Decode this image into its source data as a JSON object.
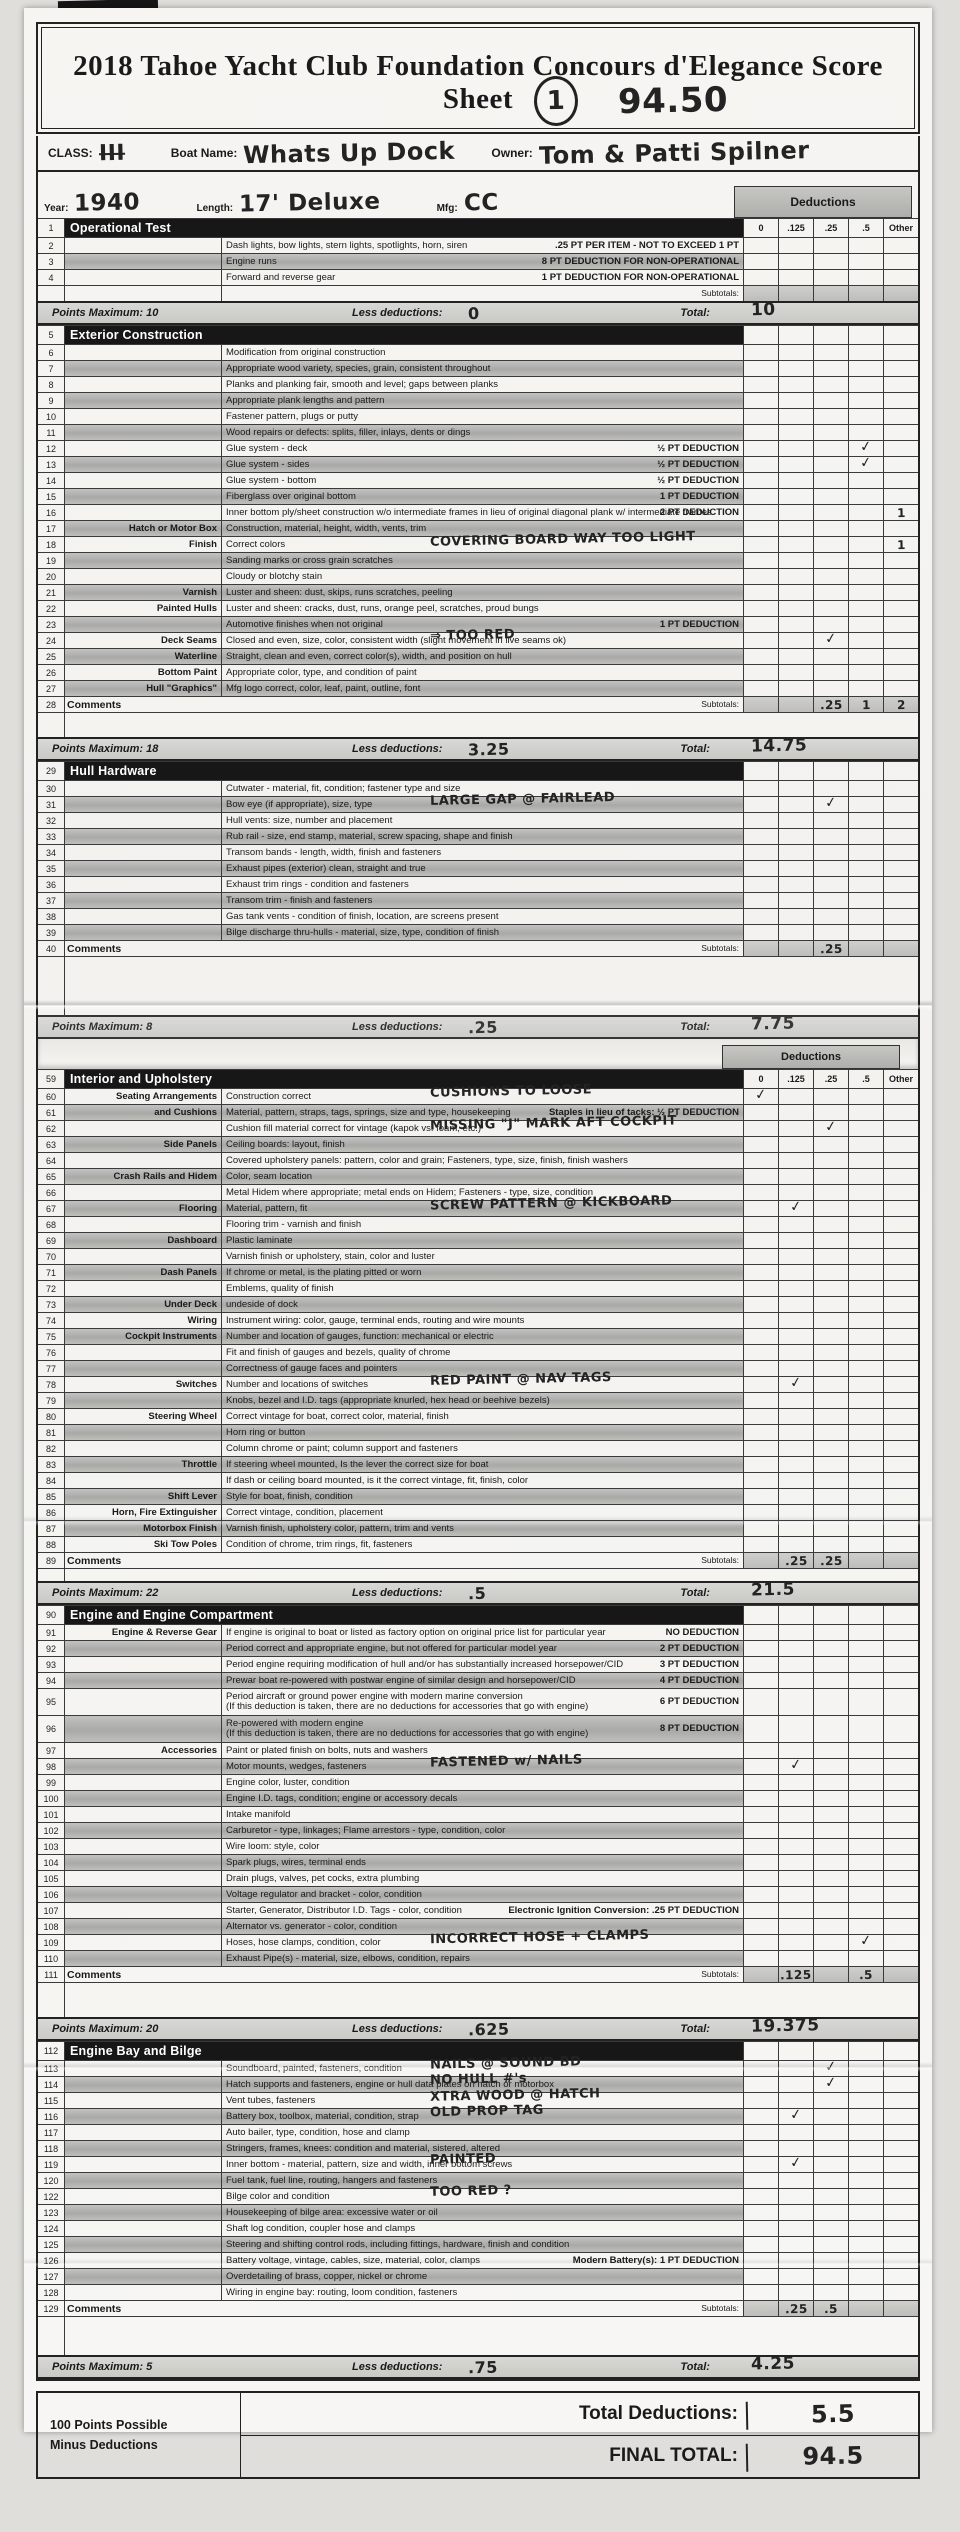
{
  "header": {
    "title": "2018 Tahoe Yacht Club Foundation Concours d'Elegance Score Sheet",
    "rank": "1",
    "score": "94.50"
  },
  "meta": {
    "class_label": "CLASS:",
    "class_value": "III",
    "boat_label": "Boat Name:",
    "boat_value": "Whats Up Dock",
    "owner_label": "Owner:",
    "owner_value": "Tom & Patti Spilner",
    "year_label": "Year:",
    "year_value": "1940",
    "length_label": "Length:",
    "length_value": "17' Deluxe",
    "mfg_label": "Mfg:",
    "mfg_value": "CC",
    "deductions_label": "Deductions",
    "columns": [
      "0",
      ".125",
      ".25",
      ".5",
      "Other"
    ]
  },
  "labels": {
    "subtotals": "Subtotals:",
    "comments": "Comments",
    "less_deductions": "Less deductions:",
    "total": "Total:"
  },
  "rows": [
    {
      "type": "section",
      "num": "1",
      "title": "Operational Test",
      "cols": true
    },
    {
      "type": "item",
      "num": "2",
      "desc": "Dash lights, bow lights, stern lights, spotlights, horn, siren",
      "note": ".25 PT PER ITEM - NOT TO EXCEED 1 PT"
    },
    {
      "type": "item",
      "num": "3",
      "desc": "Engine runs",
      "note": "8 PT DEDUCTION FOR NON-OPERATIONAL",
      "shade": true
    },
    {
      "type": "item",
      "num": "4",
      "desc": "Forward and reverse gear",
      "note": "1 PT DEDUCTION FOR NON-OPERATIONAL"
    },
    {
      "type": "subtotal",
      "vals": {}
    },
    {
      "type": "points",
      "max": "Points Maximum: 10",
      "less_val": "0",
      "total_val": "10"
    },
    {
      "type": "section",
      "num": "5",
      "title": "Exterior Construction"
    },
    {
      "type": "item",
      "num": "6",
      "desc": "Modification from original construction"
    },
    {
      "type": "item",
      "num": "7",
      "desc": "Appropriate wood variety, species, grain, consistent throughout",
      "shade": true
    },
    {
      "type": "item",
      "num": "8",
      "desc": "Planks and planking fair, smooth and level; gaps between planks"
    },
    {
      "type": "item",
      "num": "9",
      "desc": "Appropriate plank lengths and pattern",
      "shade": true
    },
    {
      "type": "item",
      "num": "10",
      "desc": "Fastener pattern, plugs or putty"
    },
    {
      "type": "item",
      "num": "11",
      "desc": "Wood repairs or defects: splits, filler, inlays, dents or dings",
      "shade": true
    },
    {
      "type": "item",
      "num": "12",
      "desc": "Glue system - deck",
      "note": "½ PT DEDUCTION",
      "checks": {
        "3": "check"
      }
    },
    {
      "type": "item",
      "num": "13",
      "desc": "Glue system - sides",
      "note": "½ PT DEDUCTION",
      "shade": true,
      "checks": {
        "3": "check"
      }
    },
    {
      "type": "item",
      "num": "14",
      "desc": "Glue system - bottom",
      "note": "½ PT DEDUCTION"
    },
    {
      "type": "item",
      "num": "15",
      "desc": "Fiberglass over original bottom",
      "note": "1 PT DEDUCTION",
      "shade": true
    },
    {
      "type": "item",
      "num": "16",
      "desc": "Inner bottom ply/sheet construction w/o intermediate frames in lieu of original diagonal plank w/ intermediate frames",
      "note": "2 PT DEDUCTION",
      "checks": {
        "4": "1"
      }
    },
    {
      "type": "item",
      "num": "17",
      "label": "Hatch or Motor Box",
      "desc": "Construction, material, height, width, vents, trim",
      "shade": true
    },
    {
      "type": "item",
      "num": "18",
      "label": "Finish",
      "desc": "Correct colors",
      "hw": "COVERING BOARD WAY TOO LIGHT",
      "checks": {
        "4": "1"
      }
    },
    {
      "type": "item",
      "num": "19",
      "desc": "Sanding marks or cross grain scratches",
      "shade": true
    },
    {
      "type": "item",
      "num": "20",
      "desc": "Cloudy or blotchy stain"
    },
    {
      "type": "item",
      "num": "21",
      "label": "Varnish",
      "desc": "Luster and sheen: dust, skips, runs scratches, peeling",
      "shade": true
    },
    {
      "type": "item",
      "num": "22",
      "label": "Painted Hulls",
      "desc": "Luster and sheen: cracks, dust, runs, orange peel, scratches, proud bungs"
    },
    {
      "type": "item",
      "num": "23",
      "desc": "Automotive finishes when not original",
      "note": "1 PT DEDUCTION",
      "shade": true
    },
    {
      "type": "item",
      "num": "24",
      "label": "Deck Seams",
      "desc": "Closed and even, size, color, consistent width (slight movement in live seams ok)",
      "hw": "⇒ TOO RED",
      "checks": {
        "2": "check"
      }
    },
    {
      "type": "item",
      "num": "25",
      "label": "Waterline",
      "desc": "Straight, clean and even, correct color(s), width, and position on hull",
      "shade": true
    },
    {
      "type": "item",
      "num": "26",
      "label": "Bottom Paint",
      "desc": "Appropriate color, type, and condition of paint"
    },
    {
      "type": "item",
      "num": "27",
      "label": "Hull \"Graphics\"",
      "desc": "Mfg logo correct, color, leaf, paint, outline, font",
      "shade": true
    },
    {
      "type": "comments",
      "num": "28",
      "vals": {
        "2": ".25",
        "3": "1",
        "4": "2"
      },
      "gap": 24
    },
    {
      "type": "points",
      "max": "Points Maximum: 18",
      "less_val": "3.25",
      "total_val": "14.75"
    },
    {
      "type": "section",
      "num": "29",
      "title": "Hull Hardware"
    },
    {
      "type": "item",
      "num": "30",
      "desc": "Cutwater - material, fit, condition; fastener type and size"
    },
    {
      "type": "item",
      "num": "31",
      "desc": "Bow eye (if appropriate), size, type",
      "shade": true,
      "hw": "LARGE GAP @ FAIRLEAD",
      "checks": {
        "2": "check"
      }
    },
    {
      "type": "item",
      "num": "32",
      "desc": "Hull vents: size, number and placement"
    },
    {
      "type": "item",
      "num": "33",
      "desc": "Rub rail - size, end stamp, material, screw spacing, shape and finish",
      "shade": true
    },
    {
      "type": "item",
      "num": "34",
      "desc": "Transom bands - length, width, finish and fasteners"
    },
    {
      "type": "item",
      "num": "35",
      "desc": "Exhaust pipes (exterior) clean, straight and true",
      "shade": true
    },
    {
      "type": "item",
      "num": "36",
      "desc": "Exhaust trim rings - condition and fasteners"
    },
    {
      "type": "item",
      "num": "37",
      "desc": "Transom trim - finish and fasteners",
      "shade": true
    },
    {
      "type": "item",
      "num": "38",
      "desc": "Gas tank vents - condition of finish, location, are screens present"
    },
    {
      "type": "item",
      "num": "39",
      "desc": "Bilge discharge thru-hulls - material, size, type, condition of finish",
      "shade": true
    },
    {
      "type": "comments",
      "num": "40",
      "vals": {
        "2": ".25"
      },
      "gap": 58
    },
    {
      "type": "points",
      "max": "Points Maximum: 8",
      "less_val": ".25",
      "total_val": "7.75",
      "cut": true
    },
    {
      "type": "pagebreak"
    },
    {
      "type": "section",
      "num": "59",
      "title": "Interior and Upholstery",
      "cols": true
    },
    {
      "type": "item",
      "num": "60",
      "label": "Seating Arrangements",
      "desc": "Construction correct",
      "hw": "CUSHIONS TO LOOSE",
      "checks": {
        "0": "check"
      }
    },
    {
      "type": "item",
      "num": "61",
      "label": "and Cushions",
      "desc": "Material, pattern, straps, tags, springs, size and type, housekeeping",
      "note": "Staples in lieu of tacks:  ½ PT DEDUCTION",
      "shade": true
    },
    {
      "type": "item",
      "num": "62",
      "desc": "Cushion fill material correct for vintage (kapok vs. foam, etc.)",
      "hw": "MISSING \"J\" MARK AFT COCKPIT",
      "checks": {
        "2": "check"
      }
    },
    {
      "type": "item",
      "num": "63",
      "label": "Side Panels",
      "desc": "Ceiling boards: layout, finish",
      "shade": true
    },
    {
      "type": "item",
      "num": "64",
      "desc": "Covered upholstery panels: pattern, color and grain; Fasteners, type, size, finish, finish washers"
    },
    {
      "type": "item",
      "num": "65",
      "label": "Crash Rails and Hidem",
      "desc": "Color, seam location",
      "shade": true
    },
    {
      "type": "item",
      "num": "66",
      "desc": "Metal Hidem where appropriate; metal ends on Hidem; Fasteners - type, size, condition"
    },
    {
      "type": "item",
      "num": "67",
      "label": "Flooring",
      "desc": "Material, pattern, fit",
      "hw": "SCREW PATTERN @ KICKBOARD",
      "shade": true,
      "checks": {
        "1": "check"
      }
    },
    {
      "type": "item",
      "num": "68",
      "desc": "Flooring trim - varnish and finish"
    },
    {
      "type": "item",
      "num": "69",
      "label": "Dashboard",
      "desc": "Plastic laminate",
      "shade": true
    },
    {
      "type": "item",
      "num": "70",
      "desc": "Varnish finish or upholstery,  stain, color and luster"
    },
    {
      "type": "item",
      "num": "71",
      "label": "Dash Panels",
      "desc": "If chrome or metal, is the plating pitted or worn",
      "shade": true
    },
    {
      "type": "item",
      "num": "72",
      "desc": "Emblems, quality of finish"
    },
    {
      "type": "item",
      "num": "73",
      "label": "Under Deck",
      "desc": "undeside of dock",
      "shade": true
    },
    {
      "type": "item",
      "num": "74",
      "label": "Wiring",
      "desc": "Instrument wiring: color, gauge, terminal ends, routing and wire mounts"
    },
    {
      "type": "item",
      "num": "75",
      "label": "Cockpit Instruments",
      "desc": "Number and location of gauges, function: mechanical or electric",
      "shade": true
    },
    {
      "type": "item",
      "num": "76",
      "desc": "Fit and finish of gauges and bezels, quality of chrome"
    },
    {
      "type": "item",
      "num": "77",
      "desc": "Correctness of gauge faces and pointers",
      "shade": true
    },
    {
      "type": "item",
      "num": "78",
      "label": "Switches",
      "desc": "Number and locations of switches",
      "hw": "RED PAINT @ NAV TAGS",
      "checks": {
        "1": "check"
      }
    },
    {
      "type": "item",
      "num": "79",
      "desc": "Knobs, bezel and I.D. tags (appropriate knurled, hex head or beehive bezels)",
      "shade": true
    },
    {
      "type": "item",
      "num": "80",
      "label": "Steering Wheel",
      "desc": "Correct vintage for boat, correct color, material, finish"
    },
    {
      "type": "item",
      "num": "81",
      "desc": "Horn ring or button",
      "shade": true
    },
    {
      "type": "item",
      "num": "82",
      "desc": "Column chrome or paint; column support and fasteners"
    },
    {
      "type": "item",
      "num": "83",
      "label": "Throttle",
      "desc": "If steering wheel mounted, Is the lever the correct size for boat",
      "shade": true
    },
    {
      "type": "item",
      "num": "84",
      "desc": "If dash or ceiling board mounted, is it the correct vintage, fit, finish, color"
    },
    {
      "type": "item",
      "num": "85",
      "label": "Shift Lever",
      "desc": "Style for boat, finish, condition",
      "shade": true
    },
    {
      "type": "item",
      "num": "86",
      "label": "Horn, Fire Extinguisher",
      "desc": "Correct vintage, condition, placement"
    },
    {
      "type": "item",
      "num": "87",
      "label": "Motorbox Finish",
      "desc": "Varnish finish, upholstery color, pattern, trim and vents",
      "shade": true
    },
    {
      "type": "item",
      "num": "88",
      "label": "Ski Tow Poles",
      "desc": "Condition of chrome, trim rings, fit, fasteners"
    },
    {
      "type": "comments",
      "num": "89",
      "vals": {
        "1": ".25",
        "2": ".25"
      },
      "gap": 12
    },
    {
      "type": "points",
      "max": "Points Maximum: 22",
      "less_val": ".5",
      "total_val": "21.5"
    },
    {
      "type": "section",
      "num": "90",
      "title": "Engine and Engine Compartment"
    },
    {
      "type": "item",
      "num": "91",
      "label": "Engine & Reverse Gear",
      "desc": "If engine is original to boat or listed as factory option on original price list for particular year",
      "note": "NO DEDUCTION"
    },
    {
      "type": "item",
      "num": "92",
      "desc": "Period correct and appropriate engine, but not offered for particular model year",
      "note": "2 PT DEDUCTION",
      "shade": true
    },
    {
      "type": "item",
      "num": "93",
      "desc": "Period engine requiring modification of hull and/or has substantially increased horsepower/CID",
      "note": "3 PT DEDUCTION"
    },
    {
      "type": "item",
      "num": "94",
      "desc": "Prewar boat re-powered with postwar engine of similar design and horsepower/CID",
      "note": "4 PT DEDUCTION",
      "shade": true
    },
    {
      "type": "item",
      "num": "95",
      "desc": "Period aircraft or ground power engine with modern marine conversion",
      "desc2": "(If this deduction is taken, there are no deductions for accessories that go with engine)",
      "note": "6 PT DEDUCTION",
      "tall": true
    },
    {
      "type": "item",
      "num": "96",
      "desc": "Re-powered with modern engine",
      "desc2": "(If this deduction is taken, there are no deductions for accessories that go with engine)",
      "note": "8 PT DEDUCTION",
      "shade": true,
      "tall": true
    },
    {
      "type": "item",
      "num": "97",
      "label": "Accessories",
      "desc": "Paint or plated finish on bolts, nuts and washers"
    },
    {
      "type": "item",
      "num": "98",
      "desc": "Motor mounts, wedges, fasteners",
      "hw": "FASTENED w/ NAILS",
      "shade": true,
      "checks": {
        "1": "check"
      }
    },
    {
      "type": "item",
      "num": "99",
      "desc": "Engine color, luster, condition"
    },
    {
      "type": "item",
      "num": "100",
      "desc": "Engine I.D. tags, condition; engine or accessory decals",
      "shade": true
    },
    {
      "type": "item",
      "num": "101",
      "desc": "Intake manifold"
    },
    {
      "type": "item",
      "num": "102",
      "desc": "Carburetor - type, linkages; Flame arrestors - type, condition, color",
      "shade": true
    },
    {
      "type": "item",
      "num": "103",
      "desc": "Wire loom: style, color"
    },
    {
      "type": "item",
      "num": "104",
      "desc": "Spark plugs, wires, terminal ends",
      "shade": true
    },
    {
      "type": "item",
      "num": "105",
      "desc": "Drain plugs, valves, pet cocks, extra plumbing"
    },
    {
      "type": "item",
      "num": "106",
      "desc": "Voltage regulator and bracket - color, condition",
      "shade": true
    },
    {
      "type": "item",
      "num": "107",
      "desc": "Starter, Generator, Distributor I.D. Tags - color, condition",
      "note": "Electronic Ignition Conversion:  .25 PT DEDUCTION"
    },
    {
      "type": "item",
      "num": "108",
      "desc": "Alternator vs. generator - color, condition",
      "shade": true
    },
    {
      "type": "item",
      "num": "109",
      "desc": "Hoses, hose clamps, condition, color",
      "hw": "INCORRECT HOSE + CLAMPS",
      "checks": {
        "3": "check"
      }
    },
    {
      "type": "item",
      "num": "110",
      "desc": "Exhaust Pipe(s) - material, size, elbows, condition, repairs",
      "shade": true
    },
    {
      "type": "comments",
      "num": "111",
      "vals": {
        "1": ".125",
        "3": ".5"
      },
      "gap": 34
    },
    {
      "type": "points",
      "max": "Points Maximum: 20",
      "less_val": ".625",
      "total_val": "19.375"
    },
    {
      "type": "section",
      "num": "112",
      "title": "Engine Bay and Bilge"
    },
    {
      "type": "item",
      "num": "113",
      "desc": "Soundboard, painted, fasteners, condition",
      "hw": "NAILS @ SOUND BD",
      "checks": {
        "2": "check"
      }
    },
    {
      "type": "item",
      "num": "114",
      "desc": "Hatch supports and fasteners, engine or hull data plates on hatch or motorbox",
      "hw": "NO HULL #'s",
      "shade": true,
      "checks": {
        "2": "check"
      }
    },
    {
      "type": "item",
      "num": "115",
      "desc": "Vent tubes, fasteners",
      "hw": "XTRA WOOD @ HATCH"
    },
    {
      "type": "item",
      "num": "116",
      "desc": "Battery box, toolbox, material, condition, strap",
      "hw": "OLD PROP TAG",
      "shade": true,
      "checks": {
        "1": "check"
      }
    },
    {
      "type": "item",
      "num": "117",
      "desc": "Auto bailer, type, condition, hose and clamp"
    },
    {
      "type": "item",
      "num": "118",
      "desc": "Stringers, frames, knees: condition and material, sistered, altered",
      "shade": true
    },
    {
      "type": "item",
      "num": "119",
      "desc": "Inner bottom - material, pattern, size and width, inner bottom screws",
      "hw": "PAINTED",
      "checks": {
        "1": "check"
      }
    },
    {
      "type": "item",
      "num": "120",
      "desc": "Fuel tank, fuel line, routing, hangers and fasteners",
      "shade": true
    },
    {
      "type": "item",
      "num": "122",
      "desc": "Bilge color and condition",
      "hw": "TOO RED ?"
    },
    {
      "type": "item",
      "num": "123",
      "desc": "Housekeeping of bilge area: excessive water or oil",
      "shade": true
    },
    {
      "type": "item",
      "num": "124",
      "desc": "Shaft log condition, coupler hose and clamps"
    },
    {
      "type": "item",
      "num": "125",
      "desc": "Steering and shifting control rods, including fittings, hardware, finish and condition",
      "shade": true
    },
    {
      "type": "item",
      "num": "126",
      "desc": "Battery voltage, vintage, cables, size, material, color, clamps",
      "note": "Modern Battery(s):  1 PT DEDUCTION"
    },
    {
      "type": "item",
      "num": "127",
      "desc": "Overdetailing of brass, copper, nickel or chrome",
      "shade": true
    },
    {
      "type": "item",
      "num": "128",
      "desc": "Wiring in engine bay: routing, loom condition, fasteners"
    },
    {
      "type": "comments",
      "num": "129",
      "vals": {
        "1": ".25",
        "2": ".5"
      },
      "gap": 38
    },
    {
      "type": "points",
      "max": "Points Maximum: 5",
      "less_val": ".75",
      "total_val": "4.25"
    }
  ],
  "footer": {
    "possible": "100 Points Possible",
    "minus": "Minus Deductions",
    "total_deductions_label": "Total Deductions:",
    "total_deductions_value": "5.5",
    "final_label": "FINAL TOTAL:",
    "final_value": "94.5"
  }
}
